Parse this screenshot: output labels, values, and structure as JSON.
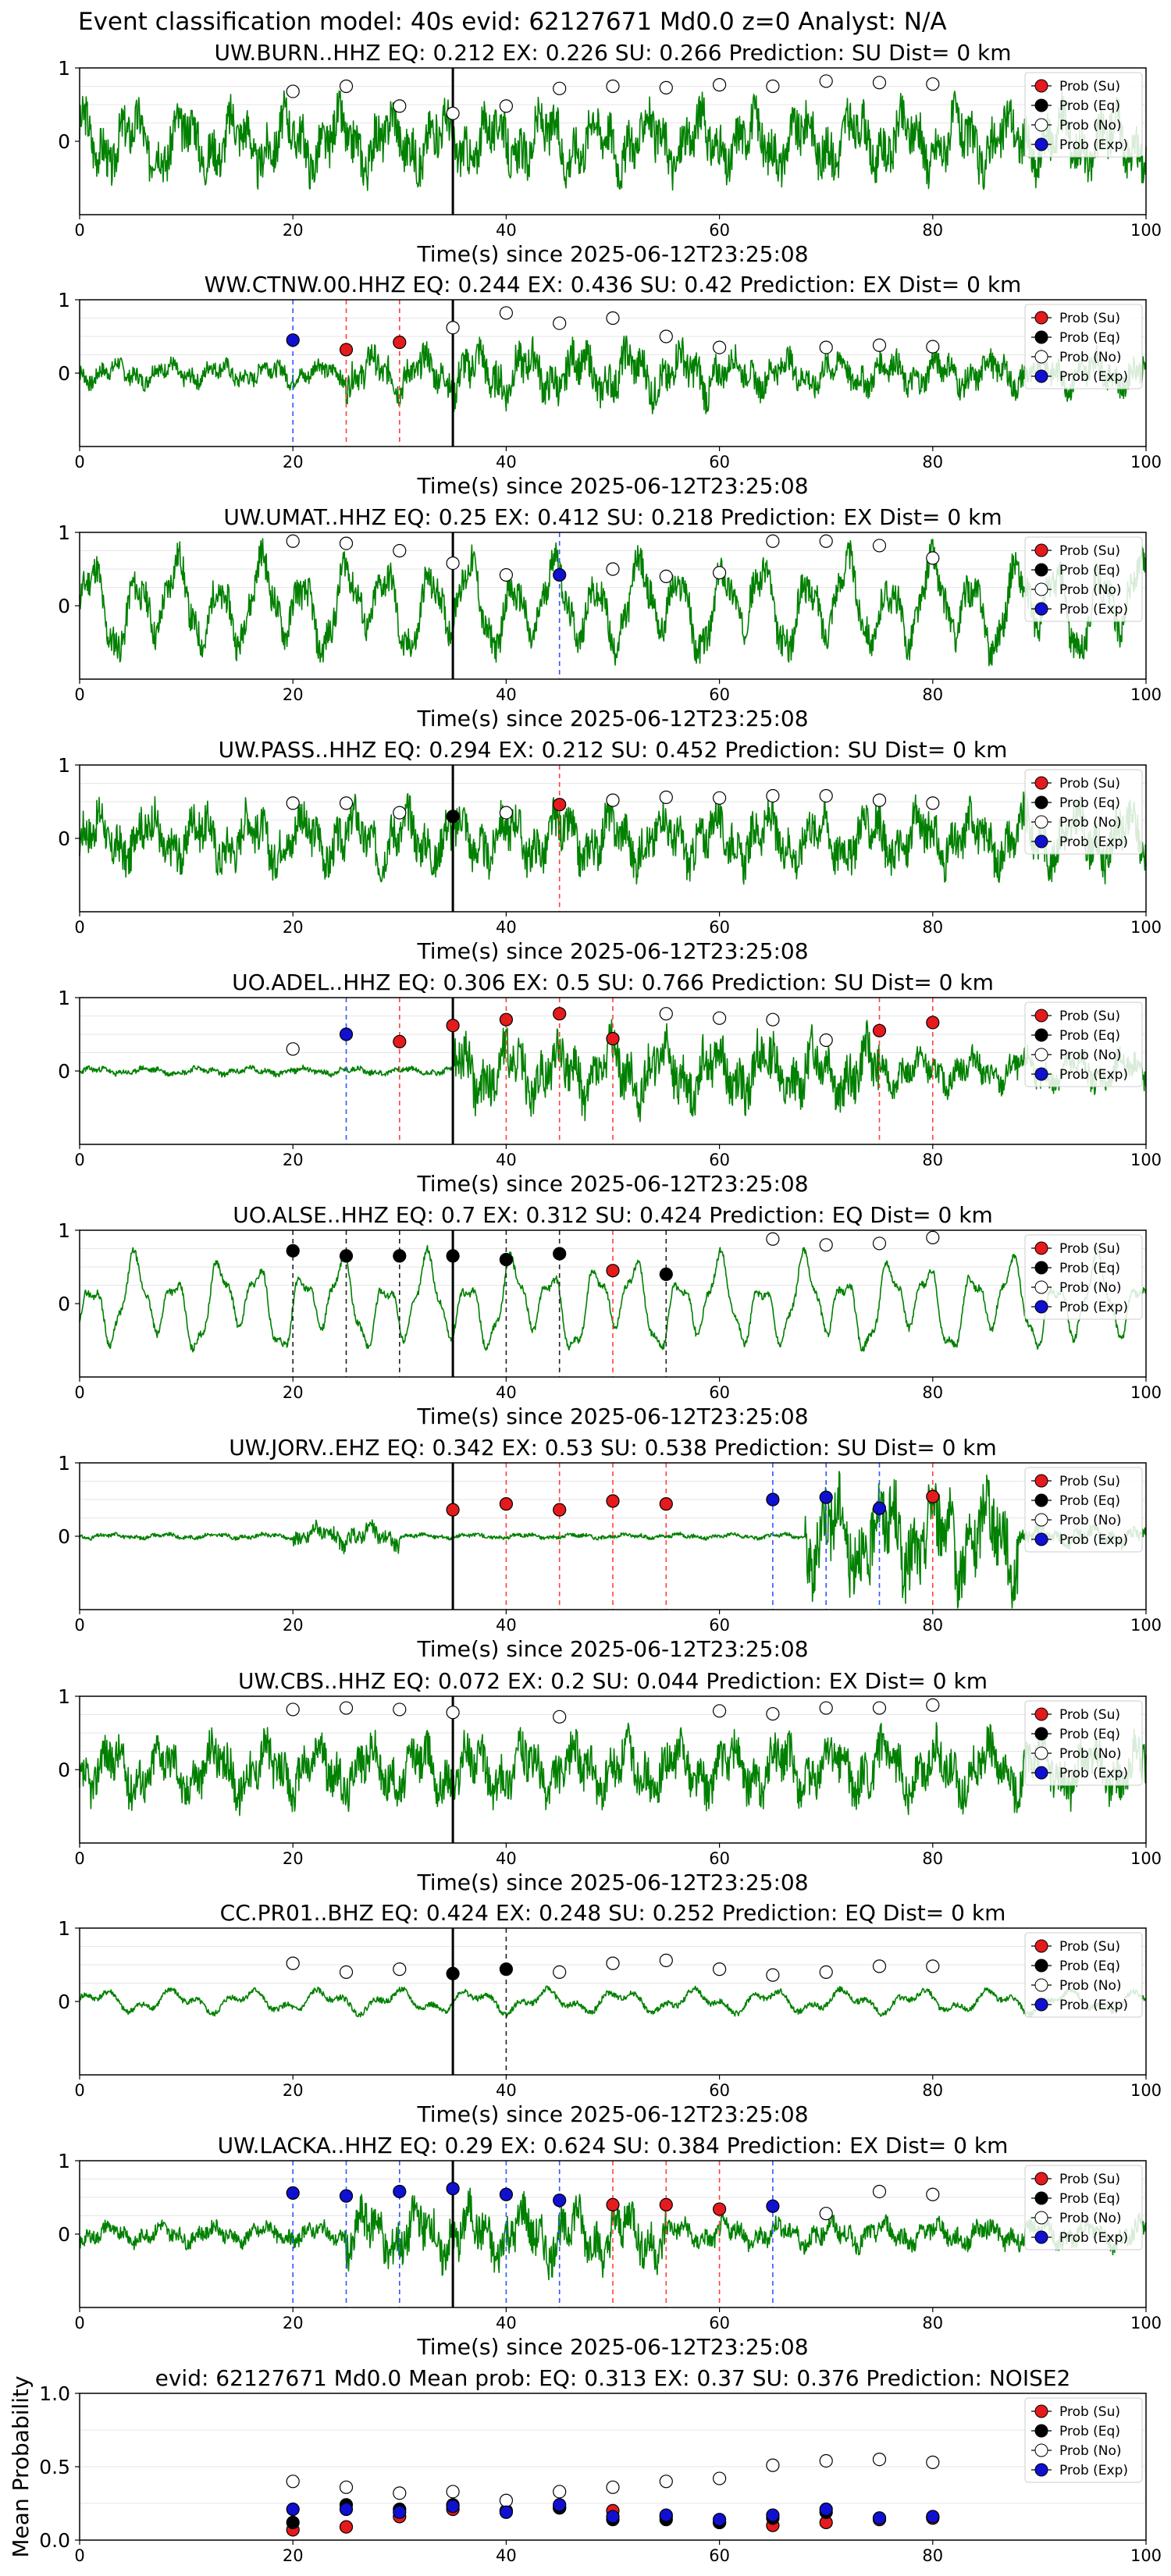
{
  "figure_title": "Event classification model: 40s evid: 62127671 Md0.0 z=0 Analyst: N/A",
  "legend_labels": [
    "Prob (Su)",
    "Prob (Eq)",
    "Prob (No)",
    "Prob (Exp)"
  ],
  "colors": {
    "su": "#e41a1c",
    "eq": "#000000",
    "no": "#ffffff",
    "exp": "#1010d0",
    "waveform": "#008000"
  },
  "chart_data": [
    {
      "type": "line",
      "title": "UW.BURN..HHZ   EQ: 0.212  EX: 0.226  SU: 0.266   Prediction: SU    Dist= 0 km",
      "xlabel": "Time(s) since 2025-06-12T23:25:08",
      "ylabel": "",
      "xlim": [
        0,
        100
      ],
      "ylim": [
        -1,
        1
      ],
      "xticks": [
        "0",
        "20",
        "40",
        "60",
        "80",
        "100"
      ],
      "yticks": [
        "0",
        "1"
      ],
      "waveform": {
        "style": "broadband",
        "amp": 0.55,
        "seed": 3
      },
      "origin_time": 35,
      "grid": true,
      "legend_position": "upper-right",
      "markers": [
        {
          "class": "no",
          "x": 20,
          "y": 0.68
        },
        {
          "class": "no",
          "x": 25,
          "y": 0.75
        },
        {
          "class": "no",
          "x": 30,
          "y": 0.48
        },
        {
          "class": "no",
          "x": 35,
          "y": 0.38
        },
        {
          "class": "no",
          "x": 40,
          "y": 0.48
        },
        {
          "class": "no",
          "x": 45,
          "y": 0.72
        },
        {
          "class": "no",
          "x": 50,
          "y": 0.75
        },
        {
          "class": "no",
          "x": 55,
          "y": 0.73
        },
        {
          "class": "no",
          "x": 60,
          "y": 0.77
        },
        {
          "class": "no",
          "x": 65,
          "y": 0.75
        },
        {
          "class": "no",
          "x": 70,
          "y": 0.82
        },
        {
          "class": "no",
          "x": 75,
          "y": 0.8
        },
        {
          "class": "no",
          "x": 80,
          "y": 0.78
        }
      ]
    },
    {
      "type": "line",
      "title": "WW.CTNW.00.HHZ   EQ: 0.244  EX: 0.436  SU: 0.42   Prediction: EX    Dist= 0 km",
      "xlabel": "Time(s) since 2025-06-12T23:25:08",
      "ylabel": "",
      "xlim": [
        0,
        100
      ],
      "ylim": [
        -1,
        1
      ],
      "xticks": [
        "0",
        "20",
        "40",
        "60",
        "80",
        "100"
      ],
      "yticks": [
        "0",
        "1"
      ],
      "waveform": {
        "style": "broadband_burst",
        "amp": 0.45,
        "seed": 7
      },
      "origin_time": 35,
      "grid": true,
      "legend_position": "upper-right",
      "markers": [
        {
          "class": "exp",
          "x": 20,
          "y": 0.45
        },
        {
          "class": "su",
          "x": 25,
          "y": 0.32
        },
        {
          "class": "su",
          "x": 30,
          "y": 0.42
        },
        {
          "class": "no",
          "x": 35,
          "y": 0.62
        },
        {
          "class": "no",
          "x": 40,
          "y": 0.82
        },
        {
          "class": "no",
          "x": 45,
          "y": 0.68
        },
        {
          "class": "no",
          "x": 50,
          "y": 0.75
        },
        {
          "class": "no",
          "x": 55,
          "y": 0.5
        },
        {
          "class": "no",
          "x": 60,
          "y": 0.35
        },
        {
          "class": "no",
          "x": 70,
          "y": 0.35
        },
        {
          "class": "no",
          "x": 75,
          "y": 0.38
        },
        {
          "class": "no",
          "x": 80,
          "y": 0.36
        }
      ]
    },
    {
      "type": "line",
      "title": "UW.UMAT..HHZ   EQ: 0.25  EX: 0.412  SU: 0.218   Prediction: EX    Dist= 0 km",
      "xlabel": "Time(s) since 2025-06-12T23:25:08",
      "ylabel": "",
      "xlim": [
        0,
        100
      ],
      "ylim": [
        -1,
        1
      ],
      "xticks": [
        "0",
        "20",
        "40",
        "60",
        "80",
        "100"
      ],
      "yticks": [
        "0",
        "1"
      ],
      "waveform": {
        "style": "lowfreq",
        "amp": 0.6,
        "seed": 11
      },
      "origin_time": 35,
      "grid": true,
      "legend_position": "upper-right",
      "markers": [
        {
          "class": "no",
          "x": 20,
          "y": 0.88
        },
        {
          "class": "no",
          "x": 25,
          "y": 0.85
        },
        {
          "class": "no",
          "x": 30,
          "y": 0.75
        },
        {
          "class": "no",
          "x": 35,
          "y": 0.58
        },
        {
          "class": "no",
          "x": 40,
          "y": 0.42
        },
        {
          "class": "exp",
          "x": 45,
          "y": 0.42
        },
        {
          "class": "no",
          "x": 50,
          "y": 0.5
        },
        {
          "class": "no",
          "x": 55,
          "y": 0.4
        },
        {
          "class": "no",
          "x": 60,
          "y": 0.45
        },
        {
          "class": "no",
          "x": 65,
          "y": 0.88
        },
        {
          "class": "no",
          "x": 70,
          "y": 0.88
        },
        {
          "class": "no",
          "x": 75,
          "y": 0.82
        },
        {
          "class": "no",
          "x": 80,
          "y": 0.65
        }
      ]
    },
    {
      "type": "line",
      "title": "UW.PASS..HHZ   EQ: 0.294  EX: 0.212  SU: 0.452   Prediction: SU    Dist= 0 km",
      "xlabel": "Time(s) since 2025-06-12T23:25:08",
      "ylabel": "",
      "xlim": [
        0,
        100
      ],
      "ylim": [
        -1,
        1
      ],
      "xticks": [
        "0",
        "20",
        "40",
        "60",
        "80",
        "100"
      ],
      "yticks": [
        "0",
        "1"
      ],
      "waveform": {
        "style": "broadband",
        "amp": 0.5,
        "seed": 17
      },
      "origin_time": 35,
      "grid": true,
      "legend_position": "upper-right",
      "markers": [
        {
          "class": "no",
          "x": 20,
          "y": 0.48
        },
        {
          "class": "no",
          "x": 25,
          "y": 0.48
        },
        {
          "class": "no",
          "x": 30,
          "y": 0.35
        },
        {
          "class": "eq",
          "x": 35,
          "y": 0.3
        },
        {
          "class": "no",
          "x": 40,
          "y": 0.35
        },
        {
          "class": "su",
          "x": 45,
          "y": 0.46
        },
        {
          "class": "no",
          "x": 50,
          "y": 0.52
        },
        {
          "class": "no",
          "x": 55,
          "y": 0.56
        },
        {
          "class": "no",
          "x": 60,
          "y": 0.55
        },
        {
          "class": "no",
          "x": 65,
          "y": 0.58
        },
        {
          "class": "no",
          "x": 70,
          "y": 0.58
        },
        {
          "class": "no",
          "x": 75,
          "y": 0.52
        },
        {
          "class": "no",
          "x": 80,
          "y": 0.48
        }
      ]
    },
    {
      "type": "line",
      "title": "UO.ADEL..HHZ   EQ: 0.306  EX: 0.5  SU: 0.766   Prediction: SU    Dist= 0 km",
      "xlabel": "Time(s) since 2025-06-12T23:25:08",
      "ylabel": "",
      "xlim": [
        0,
        100
      ],
      "ylim": [
        -1,
        1
      ],
      "xticks": [
        "0",
        "20",
        "40",
        "60",
        "80",
        "100"
      ],
      "yticks": [
        "0",
        "1"
      ],
      "waveform": {
        "style": "quiet_then_burst",
        "amp": 0.55,
        "seed": 23
      },
      "origin_time": 35,
      "grid": true,
      "legend_position": "upper-right",
      "markers": [
        {
          "class": "no",
          "x": 20,
          "y": 0.3
        },
        {
          "class": "exp",
          "x": 25,
          "y": 0.5
        },
        {
          "class": "su",
          "x": 30,
          "y": 0.4
        },
        {
          "class": "su",
          "x": 35,
          "y": 0.62
        },
        {
          "class": "su",
          "x": 40,
          "y": 0.7
        },
        {
          "class": "su",
          "x": 45,
          "y": 0.78
        },
        {
          "class": "su",
          "x": 50,
          "y": 0.44
        },
        {
          "class": "no",
          "x": 55,
          "y": 0.78
        },
        {
          "class": "no",
          "x": 60,
          "y": 0.72
        },
        {
          "class": "no",
          "x": 65,
          "y": 0.7
        },
        {
          "class": "no",
          "x": 70,
          "y": 0.42
        },
        {
          "class": "su",
          "x": 75,
          "y": 0.55
        },
        {
          "class": "su",
          "x": 80,
          "y": 0.66
        }
      ]
    },
    {
      "type": "line",
      "title": "UO.ALSE..HHZ   EQ: 0.7  EX: 0.312  SU: 0.424   Prediction: EQ    Dist= 0 km",
      "xlabel": "Time(s) since 2025-06-12T23:25:08",
      "ylabel": "",
      "xlim": [
        0,
        100
      ],
      "ylim": [
        -1,
        1
      ],
      "xticks": [
        "0",
        "20",
        "40",
        "60",
        "80",
        "100"
      ],
      "yticks": [
        "0",
        "1"
      ],
      "waveform": {
        "style": "lowfreq_clean",
        "amp": 0.6,
        "seed": 29
      },
      "origin_time": 35,
      "grid": true,
      "legend_position": "upper-right",
      "markers": [
        {
          "class": "eq",
          "x": 20,
          "y": 0.72
        },
        {
          "class": "eq",
          "x": 25,
          "y": 0.65
        },
        {
          "class": "eq",
          "x": 30,
          "y": 0.65
        },
        {
          "class": "eq",
          "x": 35,
          "y": 0.65
        },
        {
          "class": "eq",
          "x": 40,
          "y": 0.6
        },
        {
          "class": "eq",
          "x": 45,
          "y": 0.68
        },
        {
          "class": "su",
          "x": 50,
          "y": 0.45
        },
        {
          "class": "eq",
          "x": 55,
          "y": 0.4
        },
        {
          "class": "no",
          "x": 65,
          "y": 0.88
        },
        {
          "class": "no",
          "x": 70,
          "y": 0.8
        },
        {
          "class": "no",
          "x": 75,
          "y": 0.82
        },
        {
          "class": "no",
          "x": 80,
          "y": 0.9
        }
      ]
    },
    {
      "type": "line",
      "title": "UW.JORV..EHZ   EQ: 0.342  EX: 0.53  SU: 0.538   Prediction: SU    Dist= 0 km",
      "xlabel": "Time(s) since 2025-06-12T23:25:08",
      "ylabel": "",
      "xlim": [
        0,
        100
      ],
      "ylim": [
        -1,
        1
      ],
      "xticks": [
        "0",
        "20",
        "40",
        "60",
        "80",
        "100"
      ],
      "yticks": [
        "0",
        "1"
      ],
      "waveform": {
        "style": "late_burst",
        "amp": 0.75,
        "seed": 31
      },
      "origin_time": 35,
      "grid": true,
      "legend_position": "upper-right",
      "markers": [
        {
          "class": "su",
          "x": 35,
          "y": 0.36
        },
        {
          "class": "su",
          "x": 40,
          "y": 0.44
        },
        {
          "class": "su",
          "x": 45,
          "y": 0.36
        },
        {
          "class": "su",
          "x": 50,
          "y": 0.48
        },
        {
          "class": "su",
          "x": 55,
          "y": 0.44
        },
        {
          "class": "exp",
          "x": 65,
          "y": 0.5
        },
        {
          "class": "exp",
          "x": 70,
          "y": 0.53
        },
        {
          "class": "exp",
          "x": 75,
          "y": 0.38
        },
        {
          "class": "su",
          "x": 80,
          "y": 0.54
        }
      ]
    },
    {
      "type": "line",
      "title": "UW.CBS..HHZ   EQ: 0.072  EX: 0.2  SU: 0.044   Prediction: EX    Dist= 0 km",
      "xlabel": "Time(s) since 2025-06-12T23:25:08",
      "ylabel": "",
      "xlim": [
        0,
        100
      ],
      "ylim": [
        -1,
        1
      ],
      "xticks": [
        "0",
        "20",
        "40",
        "60",
        "80",
        "100"
      ],
      "yticks": [
        "0",
        "1"
      ],
      "waveform": {
        "style": "broadband",
        "amp": 0.5,
        "seed": 37
      },
      "origin_time": 35,
      "grid": true,
      "legend_position": "upper-right",
      "markers": [
        {
          "class": "no",
          "x": 20,
          "y": 0.82
        },
        {
          "class": "no",
          "x": 25,
          "y": 0.84
        },
        {
          "class": "no",
          "x": 30,
          "y": 0.82
        },
        {
          "class": "no",
          "x": 35,
          "y": 0.78
        },
        {
          "class": "no",
          "x": 45,
          "y": 0.72
        },
        {
          "class": "no",
          "x": 60,
          "y": 0.8
        },
        {
          "class": "no",
          "x": 65,
          "y": 0.76
        },
        {
          "class": "no",
          "x": 70,
          "y": 0.84
        },
        {
          "class": "no",
          "x": 75,
          "y": 0.84
        },
        {
          "class": "no",
          "x": 80,
          "y": 0.88
        }
      ]
    },
    {
      "type": "line",
      "title": "CC.PR01..BHZ   EQ: 0.424  EX: 0.248  SU: 0.252   Prediction: EQ    Dist= 0 km",
      "xlabel": "Time(s) since 2025-06-12T23:25:08",
      "ylabel": "",
      "xlim": [
        0,
        100
      ],
      "ylim": [
        -1,
        1
      ],
      "xticks": [
        "0",
        "20",
        "40",
        "60",
        "80",
        "100"
      ],
      "yticks": [
        "0",
        "1"
      ],
      "waveform": {
        "style": "smooth_low",
        "amp": 0.22,
        "seed": 41
      },
      "origin_time": 35,
      "grid": true,
      "legend_position": "upper-right",
      "markers": [
        {
          "class": "no",
          "x": 20,
          "y": 0.52
        },
        {
          "class": "no",
          "x": 25,
          "y": 0.4
        },
        {
          "class": "no",
          "x": 30,
          "y": 0.44
        },
        {
          "class": "eq",
          "x": 35,
          "y": 0.38
        },
        {
          "class": "eq",
          "x": 40,
          "y": 0.44
        },
        {
          "class": "no",
          "x": 45,
          "y": 0.4
        },
        {
          "class": "no",
          "x": 50,
          "y": 0.52
        },
        {
          "class": "no",
          "x": 55,
          "y": 0.56
        },
        {
          "class": "no",
          "x": 60,
          "y": 0.44
        },
        {
          "class": "no",
          "x": 65,
          "y": 0.36
        },
        {
          "class": "no",
          "x": 70,
          "y": 0.4
        },
        {
          "class": "no",
          "x": 75,
          "y": 0.48
        },
        {
          "class": "no",
          "x": 80,
          "y": 0.48
        }
      ]
    },
    {
      "type": "line",
      "title": "UW.LACKA..HHZ   EQ: 0.29  EX: 0.624  SU: 0.384   Prediction: EX    Dist= 0 km",
      "xlabel": "Time(s) since 2025-06-12T23:25:08",
      "ylabel": "",
      "xlim": [
        0,
        100
      ],
      "ylim": [
        -1,
        1
      ],
      "xticks": [
        "0",
        "20",
        "40",
        "60",
        "80",
        "100"
      ],
      "yticks": [
        "0",
        "1"
      ],
      "waveform": {
        "style": "mid_burst",
        "amp": 0.5,
        "seed": 43
      },
      "origin_time": 35,
      "grid": true,
      "legend_position": "upper-right",
      "markers": [
        {
          "class": "exp",
          "x": 20,
          "y": 0.56
        },
        {
          "class": "exp",
          "x": 25,
          "y": 0.52
        },
        {
          "class": "exp",
          "x": 30,
          "y": 0.58
        },
        {
          "class": "exp",
          "x": 35,
          "y": 0.62
        },
        {
          "class": "exp",
          "x": 40,
          "y": 0.54
        },
        {
          "class": "exp",
          "x": 45,
          "y": 0.46
        },
        {
          "class": "su",
          "x": 50,
          "y": 0.4
        },
        {
          "class": "su",
          "x": 55,
          "y": 0.4
        },
        {
          "class": "su",
          "x": 60,
          "y": 0.34
        },
        {
          "class": "exp",
          "x": 65,
          "y": 0.38
        },
        {
          "class": "no",
          "x": 70,
          "y": 0.28
        },
        {
          "class": "no",
          "x": 75,
          "y": 0.58
        },
        {
          "class": "no",
          "x": 80,
          "y": 0.54
        }
      ]
    },
    {
      "type": "scatter",
      "title": "evid: 62127671  Md0.0   Mean prob:   EQ: 0.313  EX: 0.37  SU: 0.376   Prediction: NOISE2",
      "xlabel": "",
      "ylabel": "Mean Probability",
      "xlim": [
        0,
        100
      ],
      "ylim": [
        0,
        1
      ],
      "xticks": [
        "0",
        "20",
        "40",
        "60",
        "80",
        "100"
      ],
      "yticks": [
        "0.0",
        "0.5",
        "1.0"
      ],
      "grid": true,
      "legend_position": "upper-right",
      "x": [
        20,
        25,
        30,
        35,
        40,
        45,
        50,
        55,
        60,
        65,
        70,
        75,
        80
      ],
      "series": [
        {
          "name": "Prob (Su)",
          "class": "su",
          "values": [
            0.07,
            0.09,
            0.16,
            0.21,
            0.2,
            0.22,
            0.2,
            0.16,
            0.12,
            0.1,
            0.12,
            0.14,
            0.15
          ]
        },
        {
          "name": "Prob (Eq)",
          "class": "eq",
          "values": [
            0.12,
            0.24,
            0.21,
            0.24,
            0.2,
            0.22,
            0.14,
            0.14,
            0.12,
            0.15,
            0.19,
            0.15,
            0.16
          ]
        },
        {
          "name": "Prob (No)",
          "class": "no",
          "values": [
            0.4,
            0.36,
            0.32,
            0.33,
            0.27,
            0.33,
            0.36,
            0.4,
            0.42,
            0.51,
            0.54,
            0.55,
            0.53
          ]
        },
        {
          "name": "Prob (Exp)",
          "class": "exp",
          "values": [
            0.21,
            0.21,
            0.19,
            0.23,
            0.19,
            0.24,
            0.16,
            0.17,
            0.14,
            0.17,
            0.21,
            0.15,
            0.16
          ]
        }
      ]
    }
  ]
}
